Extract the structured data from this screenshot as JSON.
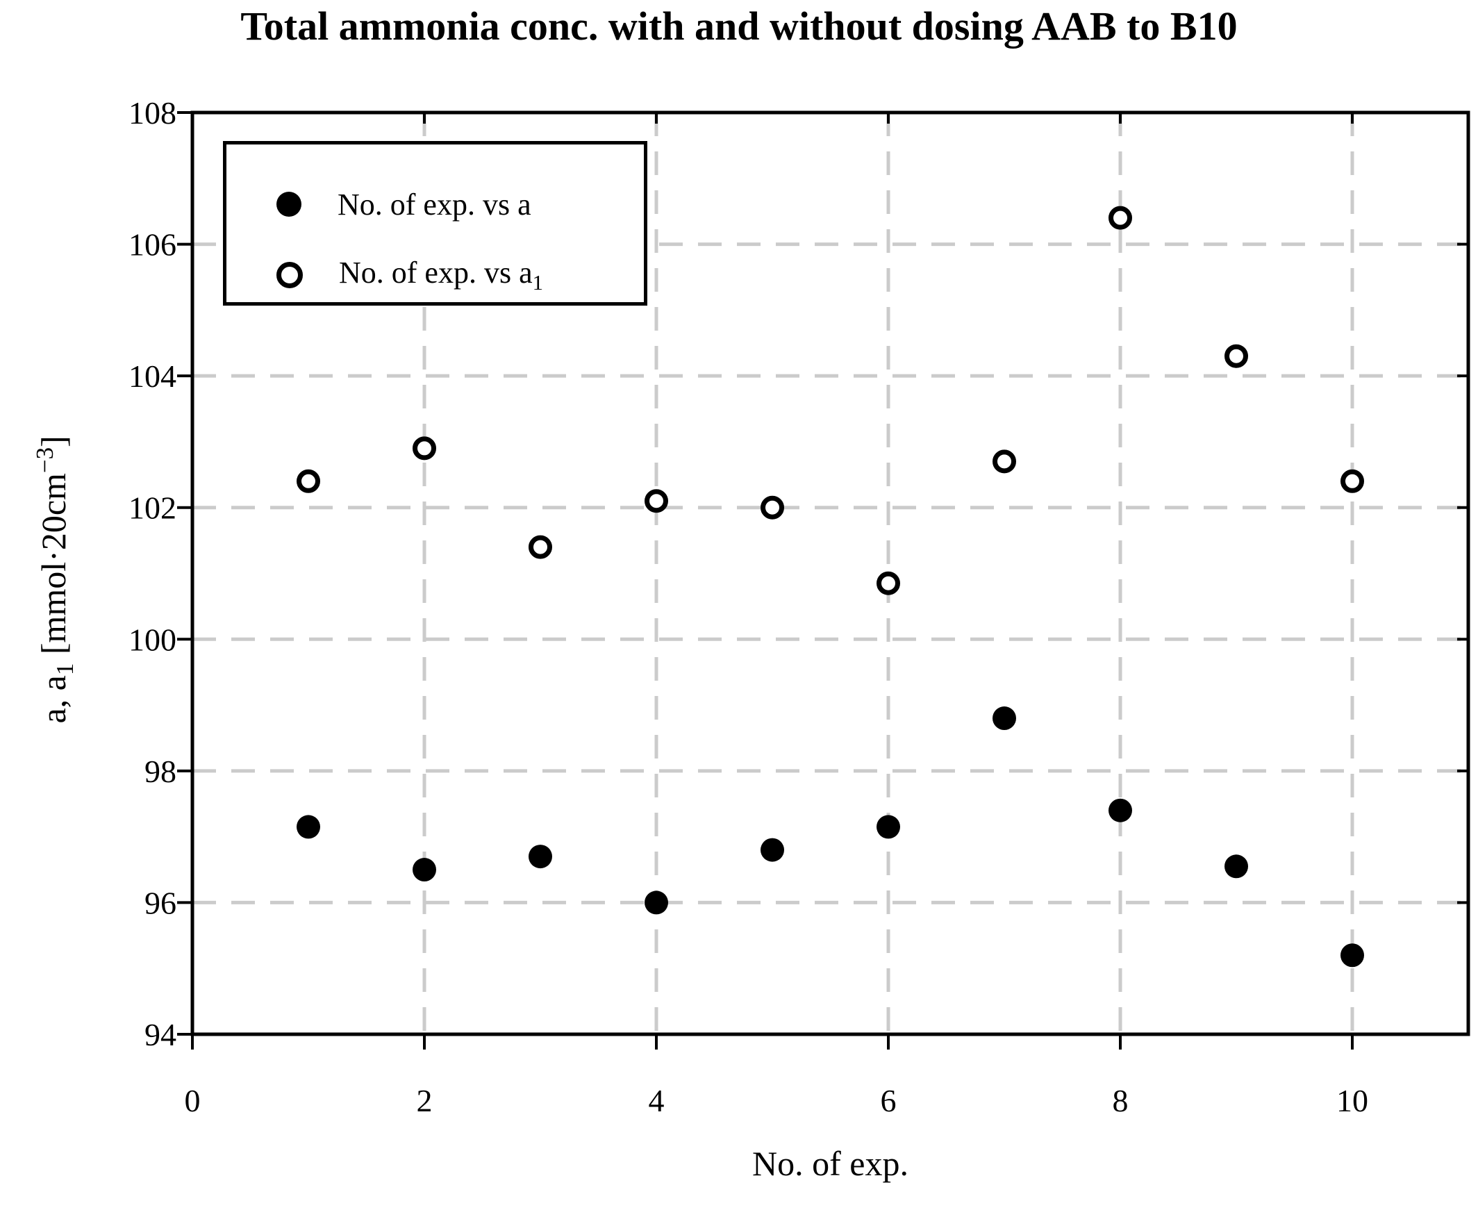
{
  "title": "Total ammonia conc. with and without dosing AAB to B10",
  "chart_data": {
    "type": "scatter",
    "x": [
      1,
      2,
      3,
      4,
      5,
      6,
      7,
      8,
      9,
      10
    ],
    "series": [
      {
        "name": "No. of exp. vs a",
        "label": "No. of exp. vs a",
        "label_sub": "",
        "marker": "filled-circle",
        "values": [
          97.15,
          96.5,
          96.7,
          96.0,
          96.8,
          97.15,
          98.8,
          97.4,
          96.55,
          95.2
        ]
      },
      {
        "name": "No. of exp. vs a1",
        "label": "No. of exp. vs a",
        "label_sub": "1",
        "marker": "open-circle",
        "values": [
          102.4,
          102.9,
          101.4,
          102.1,
          102.0,
          100.85,
          102.7,
          106.4,
          104.3,
          102.4
        ]
      }
    ],
    "xlabel": "No. of exp.",
    "ylabel_parts": [
      {
        "text": "a, a",
        "style": "normal"
      },
      {
        "text": "1",
        "style": "sub"
      },
      {
        "text": " [mmol·20cm",
        "style": "normal"
      },
      {
        "text": "−3",
        "style": "sup"
      },
      {
        "text": "]",
        "style": "normal"
      }
    ],
    "xlim": [
      0,
      11
    ],
    "ylim": [
      94,
      108
    ],
    "x_ticks": [
      0,
      2,
      4,
      6,
      8,
      10
    ],
    "y_ticks": [
      94,
      96,
      98,
      100,
      102,
      104,
      106,
      108
    ],
    "grid": "dashed",
    "legend_position": "top-left",
    "colors": {
      "marker": "#000000",
      "grid": "#cbcbcb",
      "frame": "#000000",
      "background": "#ffffff",
      "text": "#000000"
    }
  }
}
